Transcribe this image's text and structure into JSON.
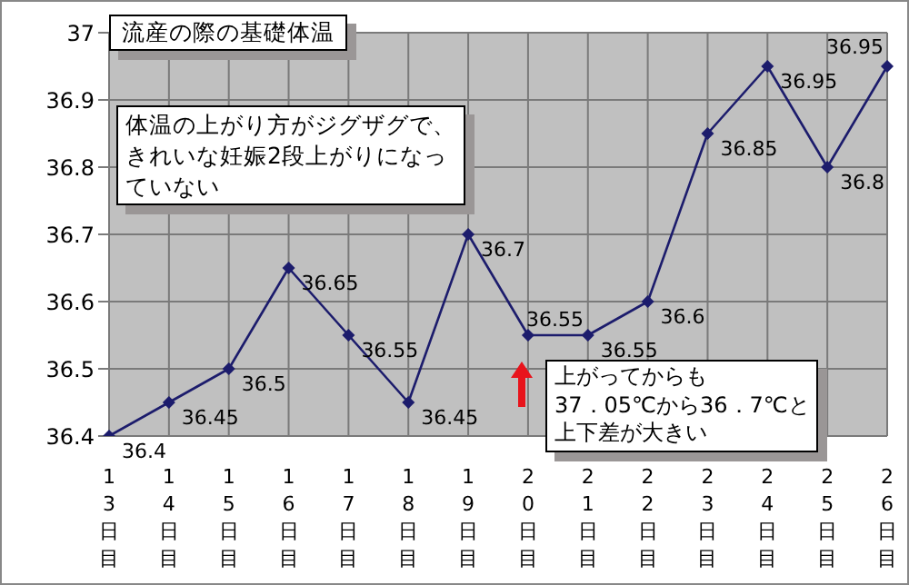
{
  "chart_data": {
    "type": "line",
    "title": "流産の際の基礎体温",
    "categories": [
      "13日目",
      "14日目",
      "15日目",
      "16日目",
      "17日目",
      "18日目",
      "19日目",
      "20日目",
      "21日目",
      "22日目",
      "23日目",
      "24日目",
      "25日目",
      "26日目"
    ],
    "series": [
      {
        "color": "#1c1c6c",
        "values": [
          36.4,
          36.45,
          36.5,
          36.65,
          36.55,
          36.45,
          36.7,
          36.55,
          36.55,
          36.6,
          36.85,
          36.95,
          36.8,
          36.95
        ]
      }
    ],
    "ylim": [
      36.4,
      37
    ],
    "yticks": [
      36.4,
      36.5,
      36.6,
      36.7,
      36.8,
      36.9,
      37
    ],
    "grid": true,
    "marker": "diamond",
    "line_style": "solid",
    "data_labels": true,
    "annotations": [
      "体温の上がり方がジグザグで、きれいな妊娠2段上がりになっていない",
      "上がってからも37．05℃から36．7℃と上下差が大きい"
    ]
  }
}
